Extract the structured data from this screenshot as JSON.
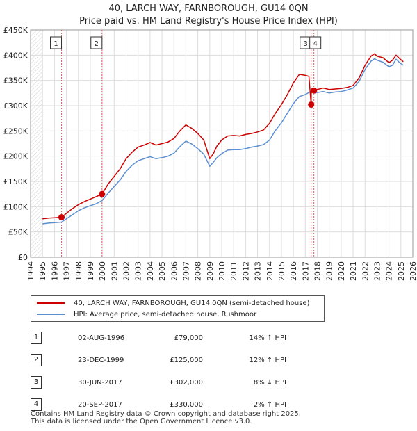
{
  "title": {
    "line1": "40, LARCH WAY, FARNBOROUGH, GU14 0QN",
    "line2": "Price paid vs. HM Land Registry's House Price Index (HPI)"
  },
  "colors": {
    "property": "#cc0000",
    "hpi": "#5b8fd0",
    "marker_line": "#e06060",
    "grid": "#dddddd"
  },
  "chart_data": {
    "type": "line",
    "title": "Price paid vs. HM Land Registry's House Price Index (HPI)",
    "xlabel": "",
    "ylabel": "",
    "xlim": [
      1995.0,
      2026.0
    ],
    "ylim": [
      0,
      450000
    ],
    "y_ticks": [
      {
        "value": 0,
        "label": "£0"
      },
      {
        "value": 50000,
        "label": "£50K"
      },
      {
        "value": 100000,
        "label": "£100K"
      },
      {
        "value": 150000,
        "label": "£150K"
      },
      {
        "value": 200000,
        "label": "£200K"
      },
      {
        "value": 250000,
        "label": "£250K"
      },
      {
        "value": 300000,
        "label": "£300K"
      },
      {
        "value": 350000,
        "label": "£350K"
      },
      {
        "value": 400000,
        "label": "£400K"
      },
      {
        "value": 450000,
        "label": "£450K"
      }
    ],
    "x_ticks": [
      "1994",
      "1995",
      "1996",
      "1997",
      "1998",
      "1999",
      "2000",
      "2001",
      "2002",
      "2003",
      "2004",
      "2005",
      "2006",
      "2007",
      "2008",
      "2009",
      "2010",
      "2011",
      "2012",
      "2013",
      "2014",
      "2015",
      "2016",
      "2017",
      "2018",
      "2019",
      "2020",
      "2021",
      "2022",
      "2023",
      "2024",
      "2025",
      "2026"
    ],
    "grid": true,
    "series": [
      {
        "name": "40, LARCH WAY, FARNBOROUGH, GU14 0QN (semi-detached house)",
        "x": [
          1995.0,
          1995.5,
          1996.0,
          1996.59,
          1997.0,
          1997.5,
          1998.0,
          1998.5,
          1999.0,
          1999.5,
          1999.98,
          2000.5,
          2001.0,
          2001.5,
          2002.0,
          2002.5,
          2003.0,
          2003.5,
          2004.0,
          2004.5,
          2005.0,
          2005.5,
          2006.0,
          2006.5,
          2007.0,
          2007.5,
          2008.0,
          2008.5,
          2009.0,
          2009.3,
          2009.6,
          2010.0,
          2010.5,
          2011.0,
          2011.5,
          2012.0,
          2012.5,
          2013.0,
          2013.5,
          2014.0,
          2014.5,
          2015.0,
          2015.5,
          2016.0,
          2016.5,
          2017.0,
          2017.3,
          2017.49,
          2017.5,
          2017.72,
          2018.0,
          2018.5,
          2019.0,
          2019.5,
          2020.0,
          2020.5,
          2021.0,
          2021.5,
          2022.0,
          2022.5,
          2022.8,
          2023.0,
          2023.5,
          2024.0,
          2024.3,
          2024.6,
          2024.9,
          2025.2
        ],
        "y": [
          76000,
          77500,
          78000,
          79000,
          87000,
          96000,
          104000,
          110000,
          115000,
          120000,
          125000,
          145000,
          160000,
          175000,
          195000,
          208000,
          218000,
          222000,
          227000,
          222000,
          225000,
          228000,
          235000,
          250000,
          262000,
          255000,
          245000,
          232000,
          195000,
          205000,
          220000,
          232000,
          240000,
          241000,
          240000,
          243000,
          245000,
          248000,
          252000,
          265000,
          285000,
          302000,
          322000,
          345000,
          362000,
          360000,
          358000,
          302000,
          330000,
          330000,
          332000,
          335000,
          332000,
          333000,
          334000,
          336000,
          340000,
          355000,
          380000,
          398000,
          403000,
          398000,
          395000,
          385000,
          390000,
          400000,
          393000,
          387000
        ]
      },
      {
        "name": "HPI: Average price, semi-detached house, Rushmoor",
        "x": [
          1995.0,
          1995.5,
          1996.0,
          1996.59,
          1997.0,
          1997.5,
          1998.0,
          1998.5,
          1999.0,
          1999.5,
          1999.98,
          2000.5,
          2001.0,
          2001.5,
          2002.0,
          2002.5,
          2003.0,
          2003.5,
          2004.0,
          2004.5,
          2005.0,
          2005.5,
          2006.0,
          2006.5,
          2007.0,
          2007.5,
          2008.0,
          2008.5,
          2009.0,
          2009.3,
          2009.6,
          2010.0,
          2010.5,
          2011.0,
          2011.5,
          2012.0,
          2012.5,
          2013.0,
          2013.5,
          2014.0,
          2014.5,
          2015.0,
          2015.5,
          2016.0,
          2016.5,
          2017.0,
          2017.3,
          2017.49,
          2017.5,
          2017.72,
          2018.0,
          2018.5,
          2019.0,
          2019.5,
          2020.0,
          2020.5,
          2021.0,
          2021.5,
          2022.0,
          2022.5,
          2022.8,
          2023.0,
          2023.5,
          2024.0,
          2024.3,
          2024.6,
          2024.9,
          2025.2
        ],
        "y": [
          66000,
          67500,
          68500,
          69500,
          76000,
          84000,
          92000,
          97500,
          102000,
          106000,
          112000,
          127000,
          140000,
          153000,
          170000,
          182000,
          191000,
          195000,
          199000,
          195000,
          197000,
          200000,
          206000,
          219000,
          230000,
          224000,
          215000,
          204000,
          180000,
          188000,
          197000,
          205000,
          212000,
          213000,
          213000,
          215000,
          218000,
          220000,
          223000,
          232000,
          251000,
          266000,
          285000,
          304000,
          318000,
          322000,
          326000,
          328000,
          328000,
          325000,
          326000,
          328000,
          325000,
          327000,
          328000,
          331000,
          335000,
          348000,
          372000,
          388000,
          393000,
          390000,
          386000,
          377000,
          380000,
          392000,
          385000,
          380000
        ]
      }
    ],
    "transactions": [
      {
        "id": "1",
        "x": 1996.59,
        "y": 79000
      },
      {
        "id": "2",
        "x": 1999.98,
        "y": 125000
      },
      {
        "id": "3",
        "x": 2017.49,
        "y": 302000
      },
      {
        "id": "4",
        "x": 2017.72,
        "y": 330000
      }
    ]
  },
  "legend": {
    "property": "40, LARCH WAY, FARNBOROUGH, GU14 0QN (semi-detached house)",
    "hpi": "HPI: Average price, semi-detached house, Rushmoor"
  },
  "table": [
    {
      "num": "1",
      "date": "02-AUG-1996",
      "price": "£79,000",
      "hpi": "14% ↑ HPI"
    },
    {
      "num": "2",
      "date": "23-DEC-1999",
      "price": "£125,000",
      "hpi": "12% ↑ HPI"
    },
    {
      "num": "3",
      "date": "30-JUN-2017",
      "price": "£302,000",
      "hpi": "8% ↓ HPI"
    },
    {
      "num": "4",
      "date": "20-SEP-2017",
      "price": "£330,000",
      "hpi": "2% ↑ HPI"
    }
  ],
  "footer": {
    "line1": "Contains HM Land Registry data © Crown copyright and database right 2025.",
    "line2": "This data is licensed under the Open Government Licence v3.0."
  }
}
